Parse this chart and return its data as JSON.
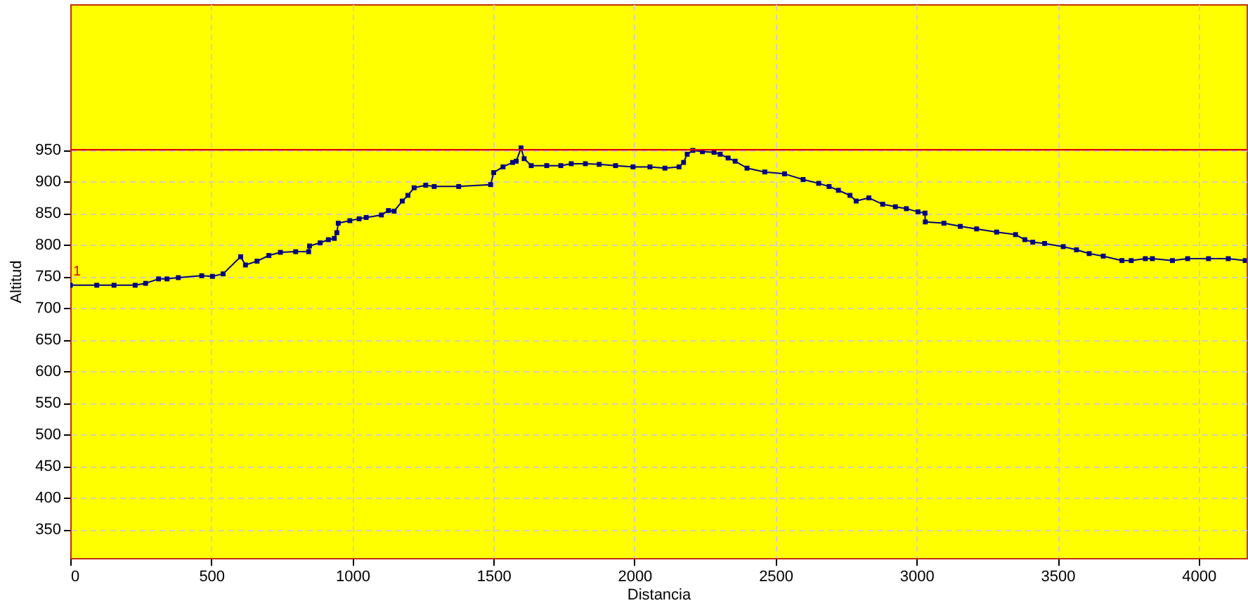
{
  "chart_data": {
    "type": "line",
    "xlabel": "Distancia",
    "ylabel": "Altitud",
    "xlim": [
      0,
      4170
    ],
    "ylim": [
      305,
      1180
    ],
    "xticks": [
      0,
      500,
      1000,
      1500,
      2000,
      2500,
      3000,
      3500,
      4000
    ],
    "yticks": [
      350,
      400,
      450,
      500,
      550,
      600,
      650,
      700,
      750,
      800,
      850,
      900,
      950
    ],
    "grid": true,
    "marker": "square",
    "line_style": "solid",
    "ref_lines": [
      {
        "axis": "y",
        "value": 950,
        "label": null,
        "color": "#e00000"
      }
    ],
    "annotations": [
      "1"
    ],
    "series": [
      {
        "color": "#000080",
        "x": [
          0,
          94,
          155,
          230,
          267,
          313,
          343,
          383,
          466,
          504,
          542,
          604,
          621,
          662,
          704,
          745,
          799,
          845,
          848,
          886,
          915,
          936,
          945,
          950,
          991,
          1024,
          1049,
          1103,
          1128,
          1148,
          1177,
          1197,
          1219,
          1260,
          1290,
          1377,
          1490,
          1501,
          1534,
          1568,
          1581,
          1598,
          1609,
          1634,
          1689,
          1739,
          1776,
          1826,
          1875,
          1933,
          1995,
          2055,
          2108,
          2158,
          2174,
          2187,
          2207,
          2241,
          2282,
          2304,
          2332,
          2357,
          2399,
          2462,
          2532,
          2598,
          2653,
          2690,
          2723,
          2764,
          2786,
          2831,
          2880,
          2925,
          2964,
          3005,
          3030,
          3031,
          3097,
          3155,
          3213,
          3284,
          3351,
          3384,
          3412,
          3454,
          3520,
          3567,
          3612,
          3662,
          3728,
          3761,
          3811,
          3836,
          3907,
          3961,
          4035,
          4105,
          4165
        ],
        "values": [
          736,
          736,
          736,
          736,
          739,
          746,
          746,
          748,
          751,
          750,
          754,
          781,
          768,
          774,
          783,
          788,
          789,
          789,
          798,
          803,
          808,
          810,
          819,
          834,
          838,
          841,
          843,
          847,
          854,
          853,
          869,
          878,
          890,
          894,
          892,
          892,
          895,
          914,
          923,
          930,
          932,
          953,
          936,
          925,
          925,
          925,
          928,
          928,
          927,
          925,
          923,
          923,
          921,
          923,
          930,
          943,
          949,
          947,
          946,
          943,
          937,
          932,
          921,
          915,
          912,
          903,
          897,
          892,
          886,
          878,
          869,
          874,
          864,
          860,
          857,
          852,
          850,
          836,
          834,
          829,
          825,
          820,
          816,
          808,
          804,
          802,
          797,
          792,
          786,
          782,
          775,
          775,
          778,
          778,
          775,
          778,
          778,
          778,
          775
        ]
      }
    ]
  }
}
